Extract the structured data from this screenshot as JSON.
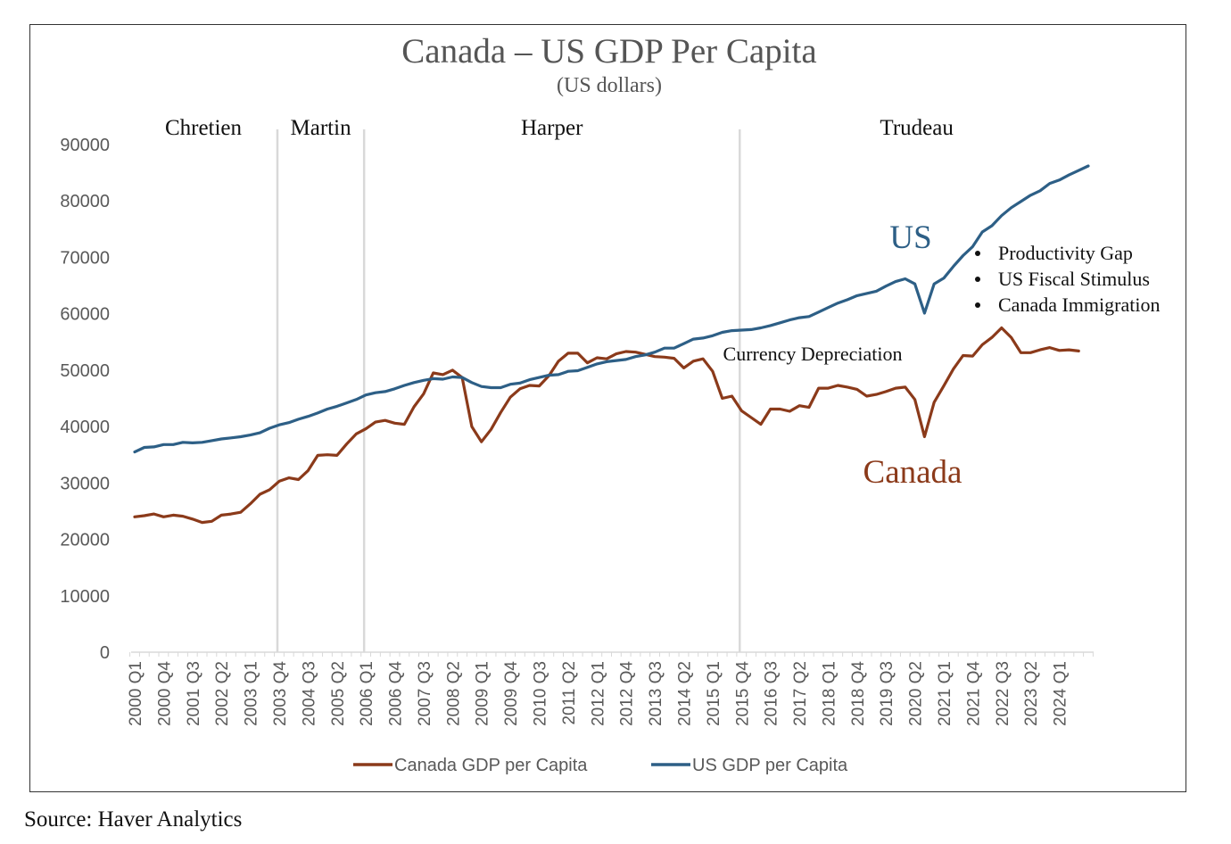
{
  "chart_data": {
    "type": "line",
    "title": "Canada – US GDP Per Capita",
    "subtitle": "(US dollars)",
    "xlabel": "",
    "ylabel": "",
    "ylim": [
      0,
      90000
    ],
    "y_ticks": [
      0,
      10000,
      20000,
      30000,
      40000,
      50000,
      60000,
      70000,
      80000,
      90000
    ],
    "x_tick_labels": [
      "2000 Q1",
      "2000 Q4",
      "2001 Q3",
      "2002 Q2",
      "2003 Q1",
      "2003 Q4",
      "2004 Q3",
      "2005 Q2",
      "2006 Q1",
      "2006 Q4",
      "2007 Q3",
      "2008 Q2",
      "2009 Q1",
      "2009 Q4",
      "2010 Q3",
      "2011 Q2",
      "2012 Q1",
      "2012 Q4",
      "2013 Q3",
      "2014 Q2",
      "2015 Q1",
      "2015 Q4",
      "2016 Q3",
      "2017 Q2",
      "2018 Q1",
      "2018 Q4",
      "2019 Q3",
      "2020 Q2",
      "2021 Q1",
      "2021 Q4",
      "2022 Q3",
      "2023 Q2",
      "2024 Q1"
    ],
    "x_start": "2000 Q1",
    "grid": false,
    "legend_position": "bottom",
    "period_labels": [
      {
        "label": "Chretien",
        "start": "2000 Q1"
      },
      {
        "label": "Martin",
        "start": "2003 Q4"
      },
      {
        "label": "Harper",
        "start": "2006 Q1"
      },
      {
        "label": "Trudeau",
        "start": "2015 Q4"
      }
    ],
    "period_dividers": [
      "2003 Q4",
      "2006 Q1",
      "2015 Q4"
    ],
    "annotations": {
      "us_label": "US",
      "canada_label": "Canada",
      "currency_note": "Currency Depreciation",
      "bullets": [
        "Productivity Gap",
        "US Fiscal Stimulus",
        "Canada Immigration"
      ]
    },
    "series": [
      {
        "name": "Canada GDP per Capita",
        "color": "#8B3A1A",
        "values": [
          24000,
          24200,
          24500,
          24000,
          24300,
          24100,
          23600,
          23000,
          23200,
          24300,
          24500,
          24800,
          26300,
          28000,
          28800,
          30300,
          30900,
          30600,
          32200,
          34900,
          35000,
          34900,
          36900,
          38700,
          39600,
          40800,
          41100,
          40600,
          40400,
          43500,
          45800,
          49500,
          49200,
          50000,
          48700,
          40000,
          37300,
          39500,
          42500,
          45200,
          46700,
          47300,
          47200,
          49000,
          51600,
          53000,
          53000,
          51300,
          52200,
          52000,
          52900,
          53300,
          53200,
          52800,
          52400,
          52300,
          52100,
          50400,
          51600,
          52000,
          49800,
          45000,
          45400,
          42800,
          41600,
          40400,
          43100,
          43100,
          42700,
          43700,
          43400,
          46800,
          46800,
          47300,
          47000,
          46600,
          45400,
          45700,
          46200,
          46800,
          47000,
          44800,
          38200,
          44300,
          47200,
          50200,
          52600,
          52500,
          54500,
          55800,
          57500,
          55800,
          53100,
          53100,
          53600,
          54000,
          53500,
          53600,
          53400
        ]
      },
      {
        "name": "US GDP per Capita",
        "color": "#2D5F86",
        "values": [
          35500,
          36300,
          36400,
          36800,
          36800,
          37200,
          37100,
          37200,
          37500,
          37800,
          38000,
          38200,
          38500,
          38900,
          39700,
          40300,
          40700,
          41300,
          41800,
          42400,
          43100,
          43600,
          44200,
          44800,
          45600,
          46000,
          46200,
          46700,
          47300,
          47800,
          48200,
          48500,
          48400,
          48800,
          48700,
          47800,
          47100,
          46900,
          46900,
          47500,
          47700,
          48300,
          48700,
          49100,
          49200,
          49800,
          49900,
          50500,
          51100,
          51500,
          51700,
          51900,
          52400,
          52700,
          53200,
          53900,
          53900,
          54700,
          55500,
          55700,
          56100,
          56700,
          57000,
          57100,
          57200,
          57500,
          57900,
          58400,
          58900,
          59300,
          59500,
          60300,
          61100,
          61900,
          62500,
          63200,
          63600,
          64000,
          64900,
          65700,
          66200,
          65300,
          60100,
          65300,
          66300,
          68400,
          70300,
          71900,
          74500,
          75600,
          77400,
          78800,
          79900,
          81000,
          81800,
          83100,
          83700,
          84600,
          85400,
          86200
        ]
      }
    ]
  },
  "source": "Source: Haver Analytics"
}
